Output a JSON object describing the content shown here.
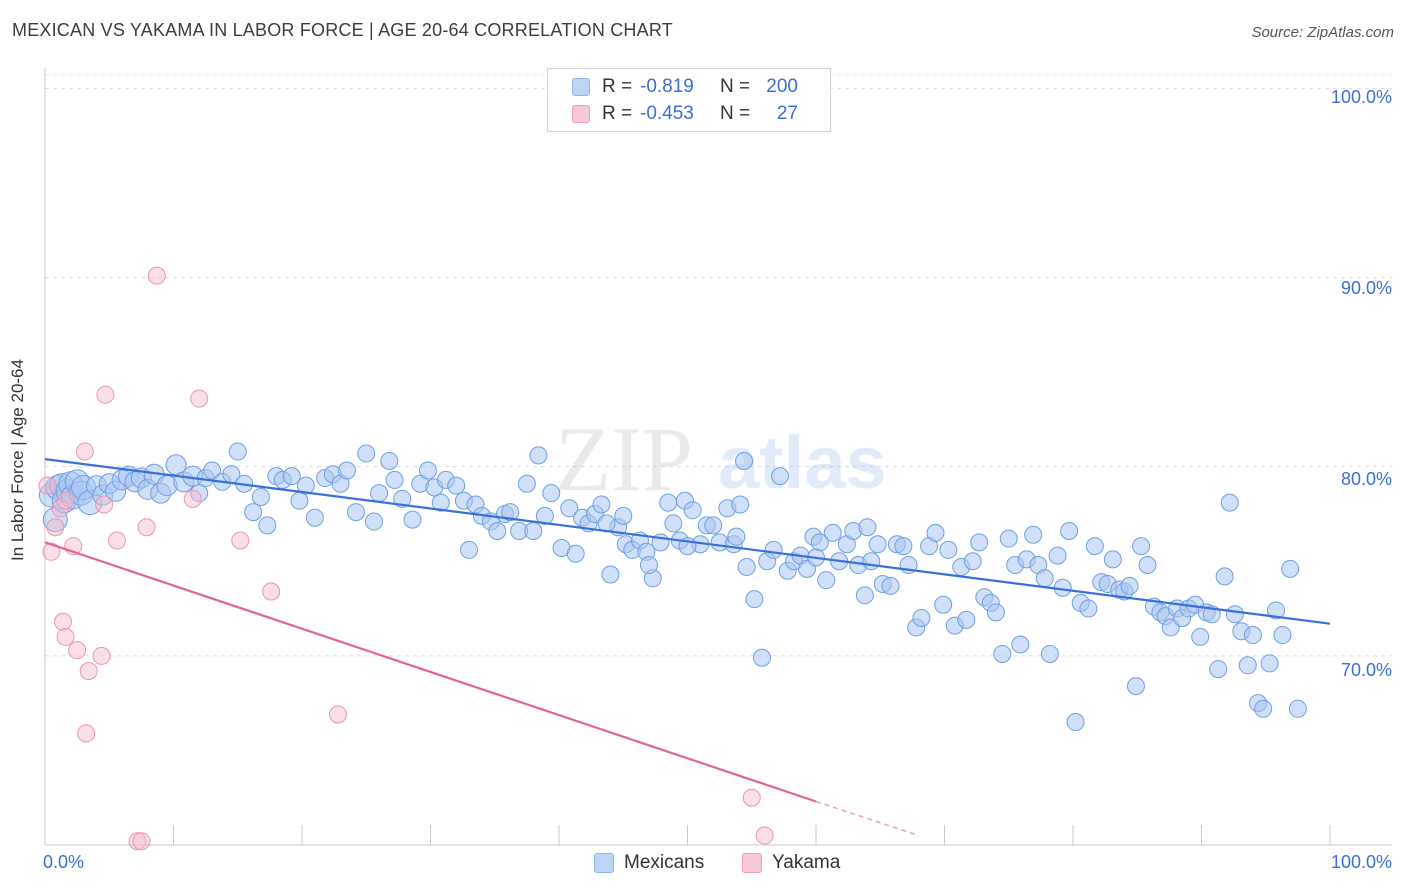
{
  "title": "MEXICAN VS YAKAMA IN LABOR FORCE | AGE 20-64 CORRELATION CHART",
  "source": "Source: ZipAtlas.com",
  "watermark": {
    "zip": "ZIP",
    "atlas": "atlas"
  },
  "legend": {
    "rows": [
      {
        "r_label": "R =",
        "r_value": "-0.819",
        "n_label": "N =",
        "n_value": "200",
        "color": "#a9c7f2"
      },
      {
        "r_label": "R =",
        "r_value": "-0.453",
        "n_label": "N =",
        "n_value": "27",
        "color": "#f6b9cc"
      }
    ]
  },
  "bottom_legend": {
    "mexicans": "Mexicans",
    "yakama": "Yakama"
  },
  "axes": {
    "ylabel": "In Labor Force | Age 20-64",
    "y_ticks": [
      "100.0%",
      "90.0%",
      "80.0%",
      "70.0%"
    ],
    "x_left": "0.0%",
    "x_right": "100.0%"
  },
  "colors": {
    "blue": "#3a6fd8",
    "blue_fill": "#a9c7f2",
    "pink": "#e0668f",
    "pink_fill": "#f6b9cc"
  },
  "chart_data": {
    "type": "scatter",
    "title": "MEXICAN VS YAKAMA IN LABOR FORCE | AGE 20-64 CORRELATION CHART",
    "xlabel": "",
    "ylabel": "In Labor Force | Age 20-64",
    "xlim": [
      0,
      100
    ],
    "ylim": [
      60,
      101.5
    ],
    "grid": true,
    "legend_position": "top-center",
    "series": [
      {
        "name": "Mexicans",
        "r": -0.819,
        "n": 200,
        "trend": {
          "x": [
            0,
            100
          ],
          "y": [
            80.4,
            71.7
          ]
        },
        "points": [
          [
            0.5,
            78.5
          ],
          [
            0.8,
            77.2
          ],
          [
            1.0,
            78.9
          ],
          [
            1.3,
            79.0
          ],
          [
            1.5,
            78.2
          ],
          [
            1.8,
            78.7
          ],
          [
            2.0,
            79.1
          ],
          [
            2.2,
            78.4
          ],
          [
            2.5,
            79.2
          ],
          [
            2.8,
            78.6
          ],
          [
            3.0,
            78.9
          ],
          [
            3.5,
            78.1
          ],
          [
            4.0,
            79.0
          ],
          [
            4.5,
            78.5
          ],
          [
            5.0,
            79.1
          ],
          [
            5.5,
            78.7
          ],
          [
            6.0,
            79.3
          ],
          [
            6.5,
            79.5
          ],
          [
            7.0,
            79.2
          ],
          [
            7.5,
            79.4
          ],
          [
            8.0,
            78.8
          ],
          [
            8.5,
            79.6
          ],
          [
            9.0,
            78.6
          ],
          [
            9.5,
            79.0
          ],
          [
            10.2,
            80.1
          ],
          [
            10.8,
            79.2
          ],
          [
            11.5,
            79.5
          ],
          [
            12.0,
            78.6
          ],
          [
            12.5,
            79.4
          ],
          [
            13.0,
            79.8
          ],
          [
            13.8,
            79.2
          ],
          [
            14.5,
            79.6
          ],
          [
            15.0,
            80.8
          ],
          [
            15.5,
            79.1
          ],
          [
            16.2,
            77.6
          ],
          [
            16.8,
            78.4
          ],
          [
            17.3,
            76.9
          ],
          [
            18.0,
            79.5
          ],
          [
            18.5,
            79.3
          ],
          [
            19.2,
            79.5
          ],
          [
            19.8,
            78.2
          ],
          [
            20.3,
            79.0
          ],
          [
            21.0,
            77.3
          ],
          [
            21.8,
            79.4
          ],
          [
            22.4,
            79.6
          ],
          [
            23.0,
            79.1
          ],
          [
            23.5,
            79.8
          ],
          [
            24.2,
            77.6
          ],
          [
            25.0,
            80.7
          ],
          [
            25.6,
            77.1
          ],
          [
            26.0,
            78.6
          ],
          [
            26.8,
            80.3
          ],
          [
            27.2,
            79.3
          ],
          [
            27.8,
            78.3
          ],
          [
            28.6,
            77.2
          ],
          [
            29.2,
            79.1
          ],
          [
            29.8,
            79.8
          ],
          [
            30.3,
            78.9
          ],
          [
            30.8,
            78.1
          ],
          [
            31.2,
            79.3
          ],
          [
            32.0,
            79.0
          ],
          [
            32.6,
            78.2
          ],
          [
            33.0,
            75.6
          ],
          [
            33.5,
            78.0
          ],
          [
            34.0,
            77.4
          ],
          [
            34.7,
            77.1
          ],
          [
            35.2,
            76.6
          ],
          [
            35.8,
            77.5
          ],
          [
            36.2,
            77.6
          ],
          [
            36.9,
            76.6
          ],
          [
            37.5,
            79.1
          ],
          [
            38.0,
            76.6
          ],
          [
            38.4,
            80.6
          ],
          [
            38.9,
            77.4
          ],
          [
            39.4,
            78.6
          ],
          [
            40.2,
            75.7
          ],
          [
            40.8,
            77.8
          ],
          [
            41.3,
            75.4
          ],
          [
            41.8,
            77.3
          ],
          [
            42.3,
            77.0
          ],
          [
            42.8,
            77.5
          ],
          [
            43.3,
            78.0
          ],
          [
            44.0,
            74.3
          ],
          [
            44.6,
            76.8
          ],
          [
            45.2,
            75.9
          ],
          [
            45.7,
            75.6
          ],
          [
            46.3,
            76.1
          ],
          [
            46.8,
            75.5
          ],
          [
            47.3,
            74.1
          ],
          [
            47.9,
            76.0
          ],
          [
            48.5,
            78.1
          ],
          [
            48.9,
            77.0
          ],
          [
            49.4,
            76.1
          ],
          [
            49.8,
            78.2
          ],
          [
            50.4,
            77.7
          ],
          [
            51.0,
            75.9
          ],
          [
            51.5,
            76.9
          ],
          [
            52.0,
            76.9
          ],
          [
            52.5,
            76.0
          ],
          [
            53.1,
            77.8
          ],
          [
            53.6,
            75.9
          ],
          [
            54.1,
            78.0
          ],
          [
            54.6,
            74.7
          ],
          [
            55.2,
            73.0
          ],
          [
            55.8,
            69.9
          ],
          [
            56.2,
            75.0
          ],
          [
            56.7,
            75.6
          ],
          [
            57.2,
            79.5
          ],
          [
            57.8,
            74.5
          ],
          [
            58.3,
            75.0
          ],
          [
            58.8,
            75.3
          ],
          [
            59.3,
            74.6
          ],
          [
            59.8,
            76.3
          ],
          [
            60.3,
            76.0
          ],
          [
            60.8,
            74.0
          ],
          [
            61.3,
            76.5
          ],
          [
            61.8,
            75.0
          ],
          [
            62.4,
            75.9
          ],
          [
            62.9,
            76.6
          ],
          [
            63.3,
            74.8
          ],
          [
            63.8,
            73.2
          ],
          [
            64.3,
            75.0
          ],
          [
            64.8,
            75.9
          ],
          [
            65.2,
            73.8
          ],
          [
            65.8,
            73.7
          ],
          [
            66.3,
            75.9
          ],
          [
            66.8,
            75.8
          ],
          [
            67.2,
            74.8
          ],
          [
            67.8,
            71.5
          ],
          [
            68.2,
            72.0
          ],
          [
            68.8,
            75.8
          ],
          [
            69.3,
            76.5
          ],
          [
            69.9,
            72.7
          ],
          [
            70.3,
            75.6
          ],
          [
            70.8,
            71.6
          ],
          [
            71.3,
            74.7
          ],
          [
            71.7,
            71.9
          ],
          [
            72.2,
            75.0
          ],
          [
            72.7,
            76.0
          ],
          [
            73.1,
            73.1
          ],
          [
            73.6,
            72.8
          ],
          [
            74.0,
            72.3
          ],
          [
            74.5,
            70.1
          ],
          [
            75.0,
            76.2
          ],
          [
            75.5,
            74.8
          ],
          [
            75.9,
            70.6
          ],
          [
            76.4,
            75.1
          ],
          [
            76.9,
            76.4
          ],
          [
            77.3,
            74.8
          ],
          [
            77.8,
            74.1
          ],
          [
            78.2,
            70.1
          ],
          [
            78.8,
            75.3
          ],
          [
            79.2,
            73.6
          ],
          [
            79.7,
            76.6
          ],
          [
            80.2,
            66.5
          ],
          [
            80.6,
            72.8
          ],
          [
            81.2,
            72.5
          ],
          [
            81.7,
            75.8
          ],
          [
            82.2,
            73.9
          ],
          [
            82.7,
            73.8
          ],
          [
            83.1,
            75.1
          ],
          [
            83.6,
            73.5
          ],
          [
            84.0,
            73.4
          ],
          [
            84.4,
            73.7
          ],
          [
            84.9,
            68.4
          ],
          [
            85.3,
            75.8
          ],
          [
            85.8,
            74.8
          ],
          [
            86.3,
            72.6
          ],
          [
            86.8,
            72.3
          ],
          [
            87.2,
            72.1
          ],
          [
            87.6,
            71.5
          ],
          [
            88.1,
            72.5
          ],
          [
            88.5,
            72.0
          ],
          [
            89.0,
            72.5
          ],
          [
            89.5,
            72.7
          ],
          [
            89.9,
            71.0
          ],
          [
            90.4,
            72.3
          ],
          [
            90.8,
            72.2
          ],
          [
            91.3,
            69.3
          ],
          [
            91.8,
            74.2
          ],
          [
            92.2,
            78.1
          ],
          [
            92.6,
            72.2
          ],
          [
            93.1,
            71.3
          ],
          [
            93.6,
            69.5
          ],
          [
            94.0,
            71.1
          ],
          [
            94.4,
            67.5
          ],
          [
            94.8,
            67.2
          ],
          [
            95.3,
            69.6
          ],
          [
            95.8,
            72.4
          ],
          [
            96.3,
            71.1
          ],
          [
            96.9,
            74.6
          ],
          [
            97.5,
            67.2
          ],
          [
            43.7,
            77.0
          ],
          [
            54.4,
            80.3
          ],
          [
            60.0,
            75.2
          ],
          [
            45.0,
            77.4
          ],
          [
            50.0,
            75.8
          ],
          [
            64.0,
            76.8
          ],
          [
            53.8,
            76.3
          ],
          [
            47.0,
            74.8
          ]
        ]
      },
      {
        "name": "Yakama",
        "r": -0.453,
        "n": 27,
        "trend_solid": {
          "x": [
            0,
            60
          ],
          "y": [
            76.0,
            62.3
          ]
        },
        "trend_dashed": {
          "x": [
            60,
            68
          ],
          "y": [
            62.3,
            60.5
          ]
        },
        "points": [
          [
            0.2,
            79.0
          ],
          [
            0.5,
            75.5
          ],
          [
            0.8,
            76.8
          ],
          [
            1.2,
            77.8
          ],
          [
            1.6,
            78.2
          ],
          [
            1.4,
            71.8
          ],
          [
            1.6,
            71.0
          ],
          [
            2.2,
            75.8
          ],
          [
            2.5,
            70.3
          ],
          [
            3.1,
            80.8
          ],
          [
            3.2,
            65.9
          ],
          [
            3.4,
            69.2
          ],
          [
            4.4,
            70.0
          ],
          [
            4.6,
            78.0
          ],
          [
            4.7,
            83.8
          ],
          [
            5.6,
            76.1
          ],
          [
            7.2,
            60.2
          ],
          [
            7.5,
            60.2
          ],
          [
            7.9,
            76.8
          ],
          [
            8.7,
            90.1
          ],
          [
            11.5,
            78.3
          ],
          [
            12.0,
            83.6
          ],
          [
            15.2,
            76.1
          ],
          [
            17.6,
            73.4
          ],
          [
            22.8,
            66.9
          ],
          [
            55.0,
            62.5
          ],
          [
            56.0,
            60.5
          ]
        ]
      }
    ]
  }
}
